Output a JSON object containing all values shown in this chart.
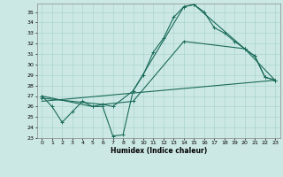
{
  "xlabel": "Humidex (Indice chaleur)",
  "bg_color": "#cce8e4",
  "grid_color": "#aad4ce",
  "line_color": "#1a6b5a",
  "xlim": [
    -0.5,
    23.5
  ],
  "ylim": [
    23,
    35.8
  ],
  "yticks": [
    23,
    24,
    25,
    26,
    27,
    28,
    29,
    30,
    31,
    32,
    33,
    34,
    35
  ],
  "xticks": [
    0,
    1,
    2,
    3,
    4,
    5,
    6,
    7,
    8,
    9,
    10,
    11,
    12,
    13,
    14,
    15,
    16,
    17,
    18,
    19,
    20,
    21,
    22,
    23
  ],
  "line1_x": [
    0,
    1,
    2,
    3,
    4,
    5,
    6,
    7,
    8,
    9,
    10,
    11,
    12,
    13,
    14,
    15,
    16,
    17,
    18,
    19,
    20,
    21,
    22,
    23
  ],
  "line1_y": [
    27.0,
    26.0,
    24.5,
    25.5,
    26.5,
    26.0,
    26.0,
    23.2,
    23.3,
    27.5,
    29.0,
    31.2,
    32.5,
    34.5,
    35.5,
    35.7,
    35.0,
    33.5,
    33.0,
    32.2,
    31.5,
    30.8,
    28.8,
    28.5
  ],
  "line2_x": [
    0,
    5,
    6,
    7,
    9,
    14,
    15,
    20,
    21,
    22,
    23
  ],
  "line2_y": [
    27.0,
    26.0,
    26.2,
    26.0,
    27.5,
    35.5,
    35.7,
    31.5,
    30.8,
    28.8,
    28.5
  ],
  "line3_x": [
    0,
    6,
    9,
    14,
    20,
    23
  ],
  "line3_y": [
    26.8,
    26.2,
    26.5,
    32.2,
    31.5,
    28.5
  ],
  "line4_x": [
    0,
    23
  ],
  "line4_y": [
    26.5,
    28.5
  ]
}
